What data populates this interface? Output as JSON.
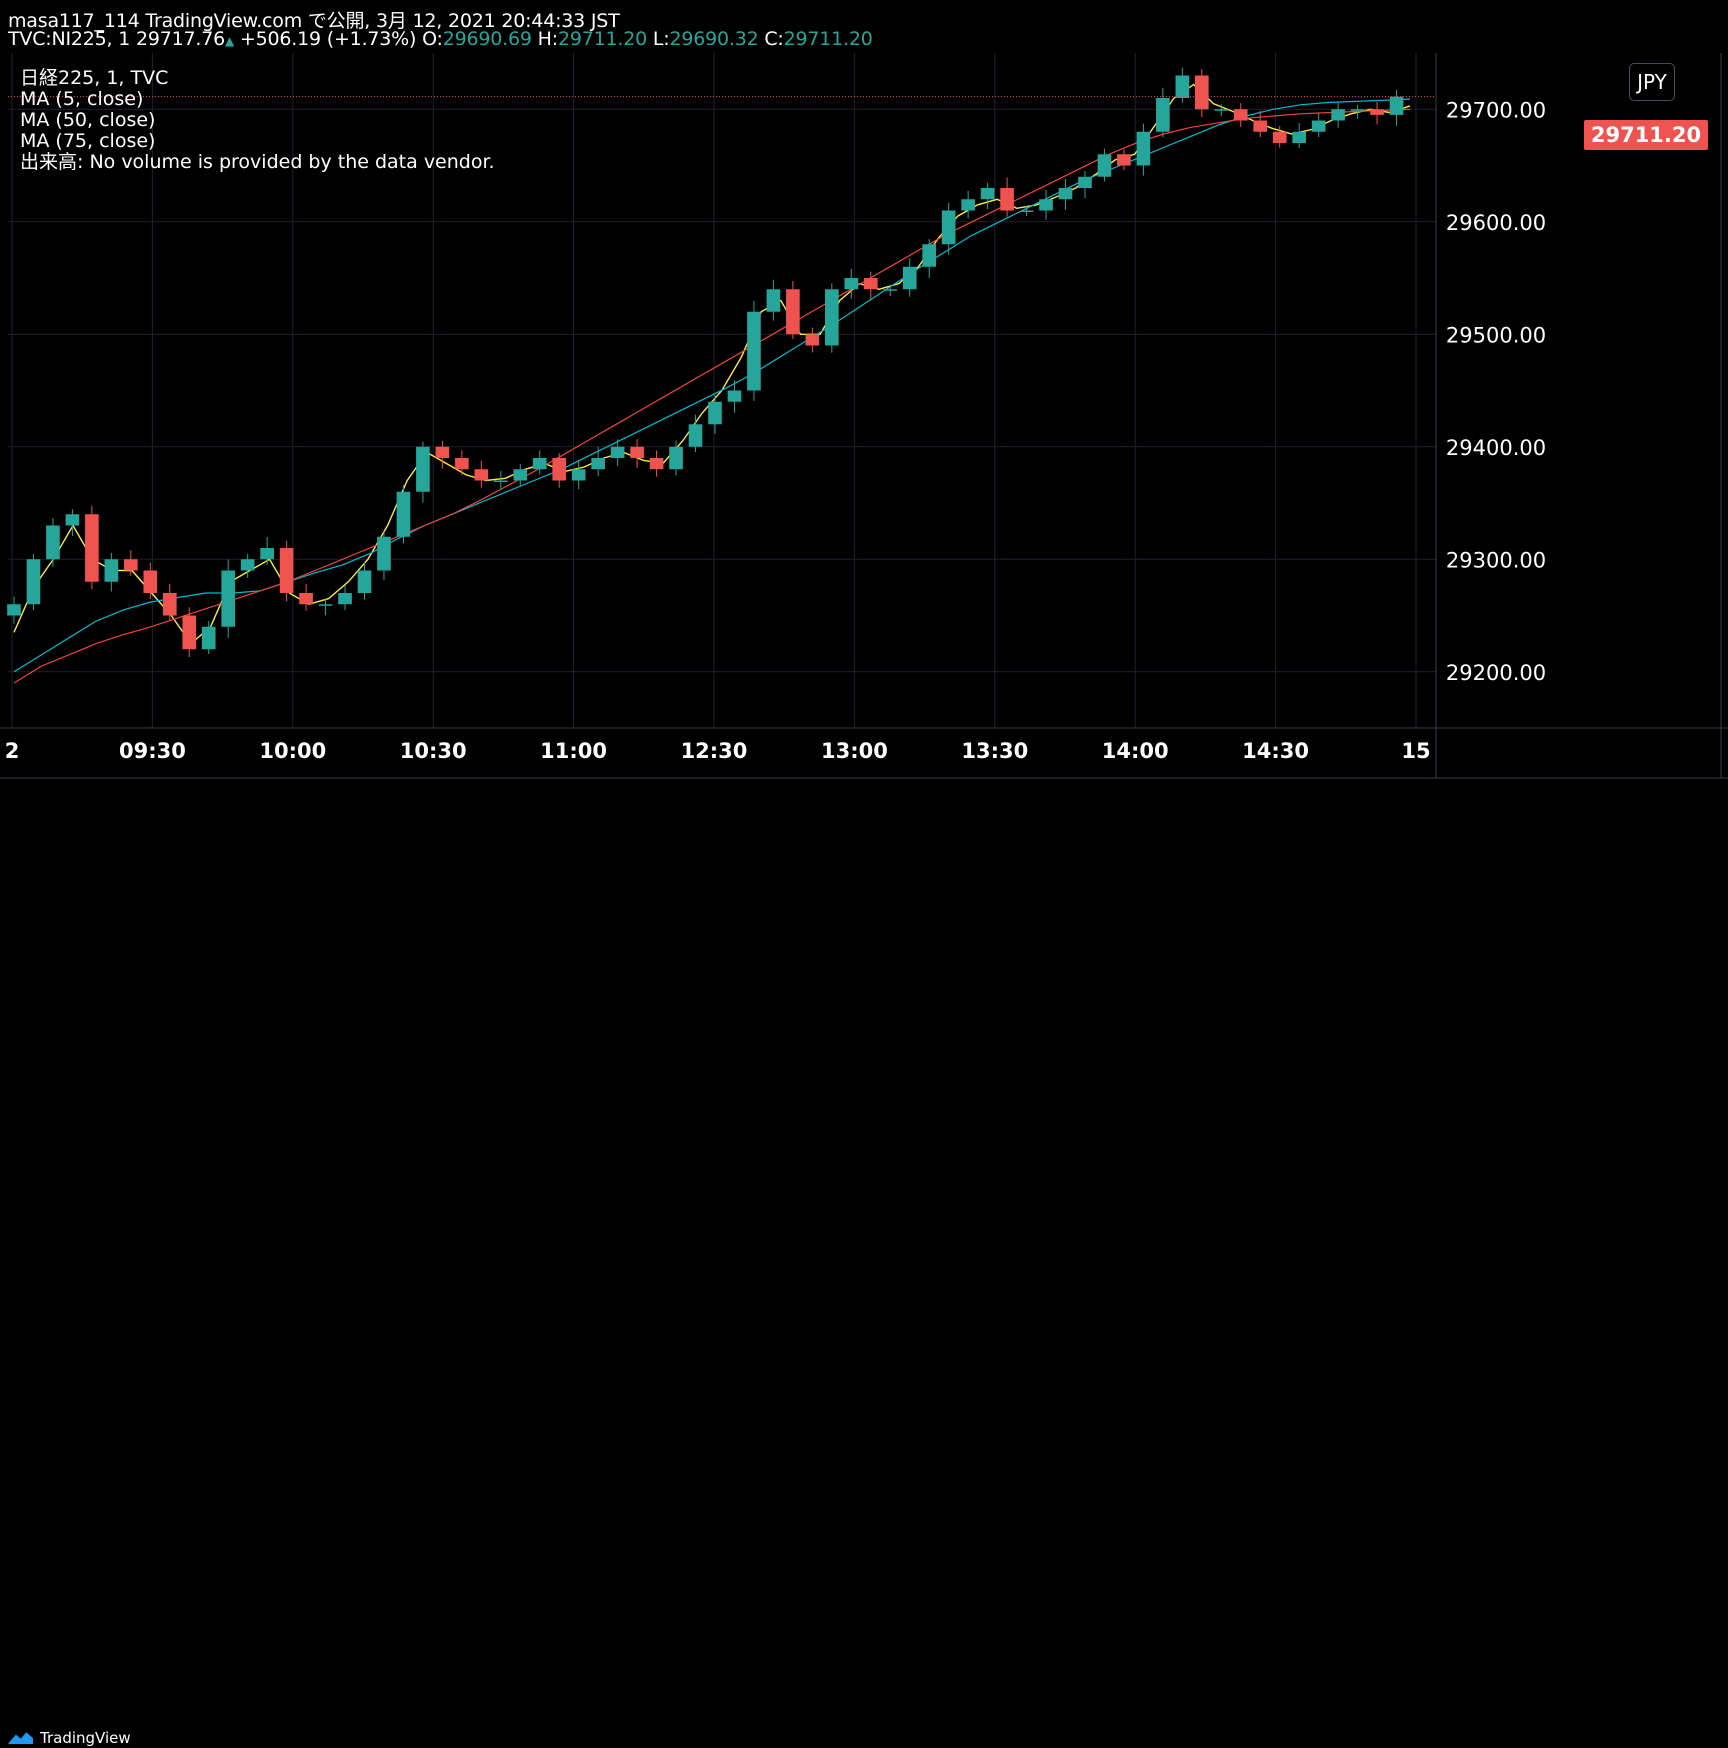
{
  "header": {
    "publisher": "masa117_114 TradingView.com で公開, 3月 12, 2021 20:44:33 JST",
    "symbol": "TVC:NI225, 1",
    "last": "29717.76",
    "change": "+506.19 (+1.73%)",
    "o_label": "O:",
    "o_value": "29690.69",
    "h_label": "H:",
    "h_value": "29711.20",
    "l_label": "L:",
    "l_value": "29690.32",
    "c_label": "C:",
    "c_value": "29711.20"
  },
  "legend": {
    "line1": "日経225, 1, TVC",
    "line2": "MA (5, close)",
    "line3": "MA (50, close)",
    "line4": "MA (75, close)",
    "line5": "出来高: No volume is provided by the data vendor."
  },
  "currency_button": "JPY",
  "price_tag": "29711.20",
  "footer": {
    "brand": "TradingView"
  },
  "colors": {
    "up": "#26a69a",
    "down": "#ef5350",
    "ma5": "#ffeb3b",
    "ma50": "#00bcd4",
    "ma75": "#f44336",
    "grid": "#1e222d",
    "background": "#000000"
  },
  "chart_data": {
    "type": "candlestick",
    "y_axis": {
      "min": 29150,
      "max": 29750,
      "ticks": [
        "29200.00",
        "29300.00",
        "29400.00",
        "29500.00",
        "29600.00",
        "29700.00"
      ]
    },
    "x_axis": {
      "ticks": [
        "2",
        "09:30",
        "10:00",
        "10:30",
        "11:00",
        "12:30",
        "13:00",
        "13:30",
        "14:00",
        "14:30",
        "15"
      ]
    },
    "current_price": 29711.2,
    "close_series": [
      29260,
      29300,
      29330,
      29340,
      29280,
      29300,
      29290,
      29270,
      29250,
      29220,
      29240,
      29290,
      29300,
      29310,
      29270,
      29260,
      29260,
      29270,
      29290,
      29320,
      29360,
      29400,
      29390,
      29380,
      29370,
      29370,
      29380,
      29390,
      29370,
      29380,
      29390,
      29400,
      29390,
      29380,
      29400,
      29420,
      29440,
      29450,
      29520,
      29540,
      29500,
      29490,
      29540,
      29550,
      29540,
      29540,
      29560,
      29580,
      29610,
      29620,
      29630,
      29610,
      29610,
      29620,
      29630,
      29640,
      29660,
      29650,
      29680,
      29710,
      29730,
      29700,
      29700,
      29690,
      29680,
      29670,
      29680,
      29690,
      29700,
      29700,
      29695,
      29711.2
    ],
    "series": [
      {
        "name": "MA (5, close)",
        "values": [
          29235,
          29275,
          29300,
          29330,
          29300,
          29290,
          29290,
          29270,
          29250,
          29225,
          29240,
          29280,
          29290,
          29300,
          29270,
          29260,
          29265,
          29280,
          29300,
          29330,
          29370,
          29395,
          29385,
          29375,
          29370,
          29372,
          29380,
          29385,
          29378,
          29382,
          29390,
          29395,
          29388,
          29385,
          29405,
          29430,
          29450,
          29480,
          29520,
          29530,
          29500,
          29500,
          29530,
          29545,
          29540,
          29545,
          29560,
          29585,
          29605,
          29615,
          29620,
          29612,
          29615,
          29622,
          29630,
          29642,
          29655,
          29660,
          29685,
          29710,
          29722,
          29705,
          29698,
          29690,
          29683,
          29678,
          29682,
          29690,
          29696,
          29700,
          29697,
          29703
        ]
      },
      {
        "name": "MA (50, close)",
        "values": [
          29200,
          29215,
          29230,
          29245,
          29255,
          29262,
          29266,
          29270,
          29270,
          29272,
          29280,
          29288,
          29295,
          29305,
          29318,
          29330,
          29340,
          29350,
          29360,
          29370,
          29380,
          29392,
          29404,
          29416,
          29428,
          29440,
          29452,
          29465,
          29480,
          29495,
          29510,
          29526,
          29542,
          29558,
          29573,
          29588,
          29600,
          29612,
          29624,
          29636,
          29646,
          29656,
          29666,
          29676,
          29686,
          29694,
          29700,
          29704,
          29706,
          29707,
          29708,
          29709
        ]
      },
      {
        "name": "MA (75, close)",
        "values": [
          29190,
          29205,
          29215,
          29225,
          29233,
          29240,
          29248,
          29256,
          29264,
          29272,
          29280,
          29290,
          29300,
          29310,
          29320,
          29330,
          29340,
          29352,
          29365,
          29378,
          29392,
          29406,
          29420,
          29434,
          29448,
          29462,
          29476,
          29490,
          29504,
          29518,
          29532,
          29546,
          29560,
          29574,
          29588,
          29600,
          29612,
          29624,
          29636,
          29648,
          29660,
          29670,
          29678,
          29684,
          29688,
          29692,
          29694,
          29696,
          29697,
          29698,
          29699,
          29700
        ]
      }
    ]
  }
}
